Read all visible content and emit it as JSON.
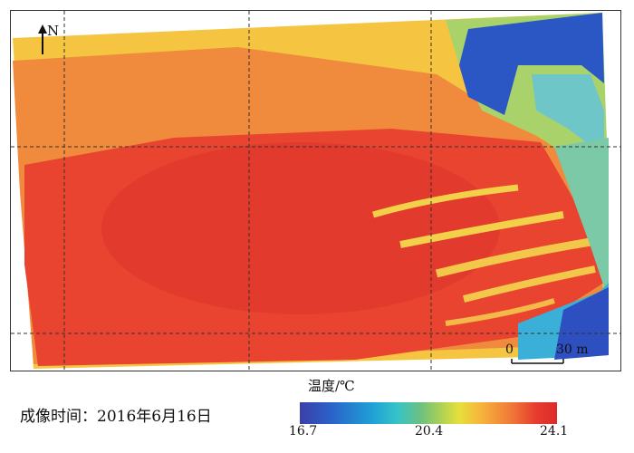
{
  "map": {
    "north_label": "N",
    "scale_start": "0",
    "scale_end": "30 m"
  },
  "caption": "成像时间：2016年6月16日",
  "legend": {
    "title": "温度/℃",
    "min_label": "16.7",
    "mid_label": "20.4",
    "max_label": "24.1",
    "colors": {
      "low": "#3b3fa8",
      "cool": "#1f9fd6",
      "mid": "#6cc080",
      "warm": "#e6e03a",
      "hot": "#f07a38",
      "max": "#dd2a2a"
    }
  }
}
